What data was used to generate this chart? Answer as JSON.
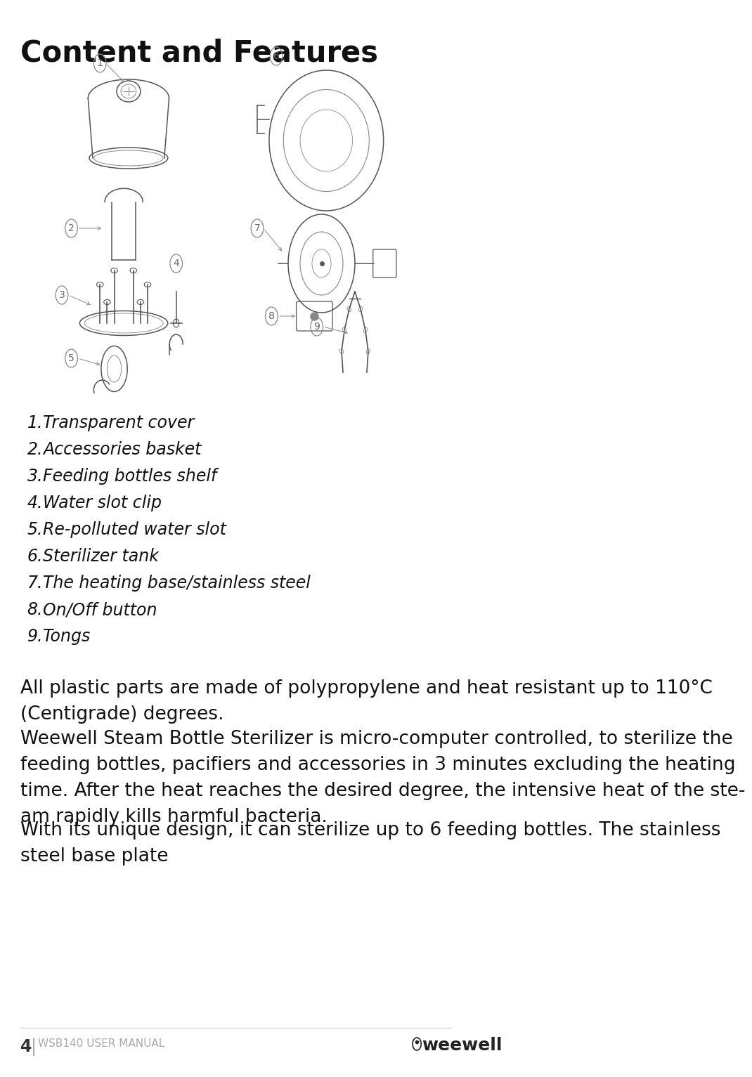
{
  "title": "Content and Features",
  "title_fontsize": 30,
  "title_fontweight": "bold",
  "background_color": "#ffffff",
  "text_color": "#111111",
  "list_items": [
    "Transparent cover",
    "Accessories basket",
    "Feeding bottles shelf",
    "Water slot clip",
    "Re-polluted water slot",
    "Sterilizer tank",
    "The heating base/stainless steel",
    "On/Off button",
    "Tongs"
  ],
  "list_fontsize": 17,
  "list_number_fontsize": 17,
  "paragraph1": "All plastic parts are made of polypropylene and heat resistant up to 110°C\n(Centigrade) degrees.",
  "paragraph2": "Weewell Steam Bottle Sterilizer is micro-computer controlled, to sterilize the\nfeeding bottles, pacifiers and accessories in 3 minutes excluding the heating\ntime. After the heat reaches the desired degree, the intensive heat of the ste-\nam rapidly kills harmful bacteria.",
  "paragraph3": "With its unique design, it can sterilize up to 6 feeding bottles. The stainless\nsteel base plate",
  "para_fontsize": 19,
  "footer_left_num": "4",
  "footer_left_sep": "|",
  "footer_left_text": "WSB140 USER MANUAL",
  "footer_right": "weewell",
  "footer_num_fontsize": 17,
  "footer_text_fontsize": 11,
  "footer_color": "#aaaaaa",
  "footer_num_color": "#333333",
  "footer_brand_color": "#222222",
  "footer_brand_fontsize": 18,
  "line_color": "#cccccc",
  "label_color": "#666666",
  "label_edge_color": "#888888",
  "arrow_color": "#999999",
  "diagram_color": "#555555",
  "diagram_light": "#888888"
}
